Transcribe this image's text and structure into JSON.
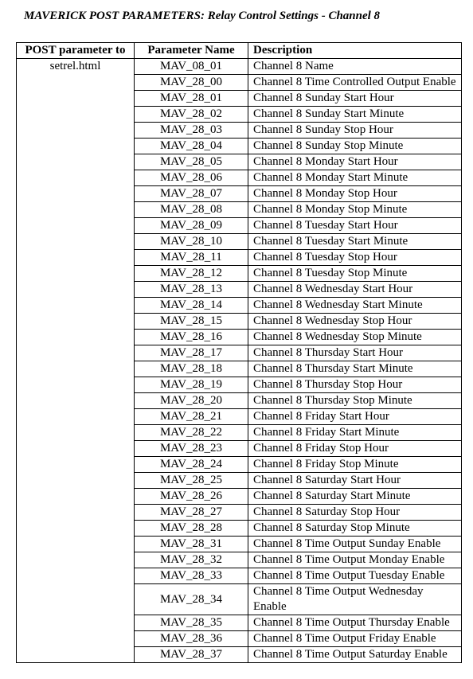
{
  "title_main": "MAVERICK POST PARAMETERS:",
  "title_sub": "  Relay Control Settings - Channel 8",
  "columns": {
    "post": "POST parameter to",
    "param": "Parameter Name",
    "desc": "Description"
  },
  "post_value": "setrel.html",
  "rows": [
    {
      "param": "MAV_08_01",
      "desc": "Channel 8 Name"
    },
    {
      "param": "MAV_28_00",
      "desc": "Channel 8 Time Controlled Output Enable"
    },
    {
      "param": "MAV_28_01",
      "desc": "Channel 8 Sunday Start Hour"
    },
    {
      "param": "MAV_28_02",
      "desc": "Channel 8 Sunday Start Minute"
    },
    {
      "param": "MAV_28_03",
      "desc": "Channel 8 Sunday Stop Hour"
    },
    {
      "param": "MAV_28_04",
      "desc": "Channel 8 Sunday Stop Minute"
    },
    {
      "param": "MAV_28_05",
      "desc": "Channel 8 Monday Start Hour"
    },
    {
      "param": "MAV_28_06",
      "desc": "Channel 8 Monday Start Minute"
    },
    {
      "param": "MAV_28_07",
      "desc": "Channel 8 Monday Stop Hour"
    },
    {
      "param": "MAV_28_08",
      "desc": "Channel 8 Monday Stop Minute"
    },
    {
      "param": "MAV_28_09",
      "desc": "Channel 8 Tuesday Start Hour"
    },
    {
      "param": "MAV_28_10",
      "desc": "Channel 8 Tuesday Start Minute"
    },
    {
      "param": "MAV_28_11",
      "desc": "Channel 8 Tuesday Stop Hour"
    },
    {
      "param": "MAV_28_12",
      "desc": "Channel 8 Tuesday Stop Minute"
    },
    {
      "param": "MAV_28_13",
      "desc": "Channel 8 Wednesday Start Hour"
    },
    {
      "param": "MAV_28_14",
      "desc": "Channel 8 Wednesday Start Minute"
    },
    {
      "param": "MAV_28_15",
      "desc": "Channel 8 Wednesday Stop Hour"
    },
    {
      "param": "MAV_28_16",
      "desc": "Channel 8 Wednesday Stop Minute"
    },
    {
      "param": "MAV_28_17",
      "desc": "Channel 8 Thursday Start Hour"
    },
    {
      "param": "MAV_28_18",
      "desc": "Channel 8 Thursday Start Minute"
    },
    {
      "param": "MAV_28_19",
      "desc": "Channel 8 Thursday Stop Hour"
    },
    {
      "param": "MAV_28_20",
      "desc": "Channel 8 Thursday Stop Minute"
    },
    {
      "param": "MAV_28_21",
      "desc": "Channel 8 Friday Start Hour"
    },
    {
      "param": "MAV_28_22",
      "desc": "Channel 8 Friday Start Minute"
    },
    {
      "param": "MAV_28_23",
      "desc": "Channel 8 Friday Stop Hour"
    },
    {
      "param": "MAV_28_24",
      "desc": "Channel 8 Friday Stop Minute"
    },
    {
      "param": "MAV_28_25",
      "desc": "Channel 8 Saturday Start Hour"
    },
    {
      "param": "MAV_28_26",
      "desc": "Channel 8 Saturday Start Minute"
    },
    {
      "param": "MAV_28_27",
      "desc": "Channel 8 Saturday Stop Hour"
    },
    {
      "param": "MAV_28_28",
      "desc": "Channel 8 Saturday Stop Minute"
    },
    {
      "param": "MAV_28_31",
      "desc": "Channel 8 Time Output Sunday Enable"
    },
    {
      "param": "MAV_28_32",
      "desc": "Channel 8 Time Output Monday Enable"
    },
    {
      "param": "MAV_28_33",
      "desc": "Channel 8 Time Output Tuesday Enable"
    },
    {
      "param": "MAV_28_34",
      "desc": "Channel 8 Time Output Wednesday Enable"
    },
    {
      "param": "MAV_28_35",
      "desc": "Channel 8 Time Output Thursday Enable"
    },
    {
      "param": "MAV_28_36",
      "desc": "Channel 8 Time Output Friday Enable"
    },
    {
      "param": "MAV_28_37",
      "desc": "Channel 8 Time Output Saturday Enable"
    }
  ]
}
